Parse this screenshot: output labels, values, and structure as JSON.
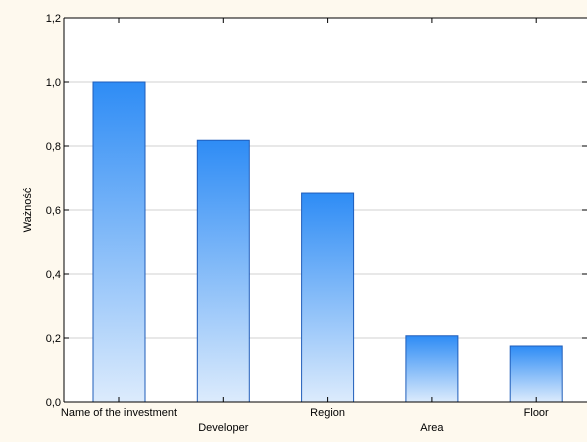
{
  "chart_data": {
    "type": "bar",
    "title": "",
    "xlabel": "",
    "ylabel": "Ważność",
    "categories": [
      "Name of the investment",
      "Developer",
      "Region",
      "Area",
      "Floor"
    ],
    "values": [
      1.0,
      0.818,
      0.653,
      0.207,
      0.175
    ],
    "ylim": [
      0,
      1.2
    ],
    "yticks": [
      "0,0",
      "0,2",
      "0,4",
      "0,6",
      "0,8",
      "1,0",
      "1,2"
    ],
    "grid": true,
    "legend": "none"
  },
  "colors": {
    "plot_background": "#FFFFFF",
    "frame_background": "#FEF9EE",
    "bar_top": "#2E8CF5",
    "bar_bottom": "#DCEBFC",
    "bar_border": "#1F5DBA",
    "grid": "#C0C0C0",
    "axis": "#000000"
  }
}
